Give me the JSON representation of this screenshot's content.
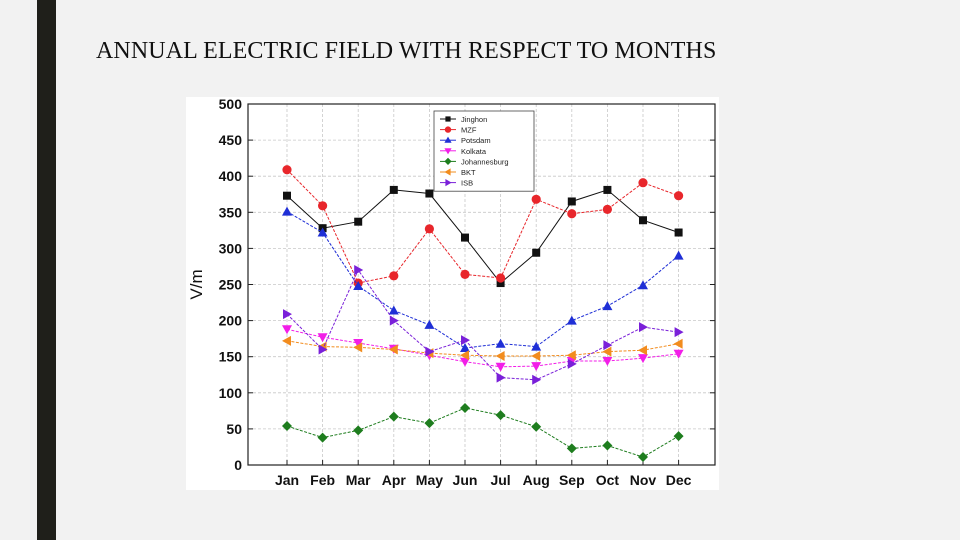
{
  "slide": {
    "title": "ANNUAL ELECTRIC FIELD WITH RESPECT TO MONTHS",
    "accent_bar_color": "#1f1f1a",
    "background_color": "#f2f2f2"
  },
  "chart_data": {
    "type": "line",
    "title": "",
    "xlabel": "",
    "ylabel": "V/m",
    "ylim": [
      0,
      500
    ],
    "yticks": [
      0,
      50,
      100,
      150,
      200,
      250,
      300,
      350,
      400,
      450,
      500
    ],
    "grid": true,
    "legend_position": "top-center",
    "categories": [
      "Jan",
      "Feb",
      "Mar",
      "Apr",
      "May",
      "Jun",
      "Jul",
      "Aug",
      "Sep",
      "Oct",
      "Nov",
      "Dec"
    ],
    "series": [
      {
        "name": "Jinghon",
        "color": "#111111",
        "marker": "square",
        "values": [
          373,
          328,
          337,
          381,
          376,
          315,
          252,
          294,
          365,
          381,
          339,
          322
        ]
      },
      {
        "name": "MZF",
        "color": "#e8262b",
        "marker": "circle",
        "values": [
          409,
          359,
          252,
          262,
          327,
          264,
          259,
          368,
          348,
          354,
          391,
          373
        ]
      },
      {
        "name": "Potsdam",
        "color": "#1f2fd6",
        "marker": "triangle-up",
        "values": [
          351,
          322,
          248,
          214,
          194,
          162,
          168,
          164,
          200,
          220,
          249,
          290
        ]
      },
      {
        "name": "Kolkata",
        "color": "#f21ee8",
        "marker": "triangle-down",
        "values": [
          188,
          177,
          169,
          161,
          152,
          143,
          136,
          137,
          144,
          144,
          148,
          154
        ]
      },
      {
        "name": "Johannesburg",
        "color": "#1e7d1e",
        "marker": "diamond",
        "values": [
          54,
          38,
          48,
          67,
          58,
          79,
          69,
          53,
          23,
          27,
          11,
          40
        ]
      },
      {
        "name": "BKT",
        "color": "#f28c1e",
        "marker": "triangle-left",
        "values": [
          172,
          164,
          163,
          160,
          155,
          152,
          151,
          151,
          152,
          157,
          159,
          168
        ]
      },
      {
        "name": "ISB",
        "color": "#7a20d9",
        "marker": "triangle-right",
        "values": [
          209,
          160,
          270,
          200,
          157,
          173,
          121,
          118,
          140,
          166,
          191,
          184
        ]
      }
    ]
  }
}
